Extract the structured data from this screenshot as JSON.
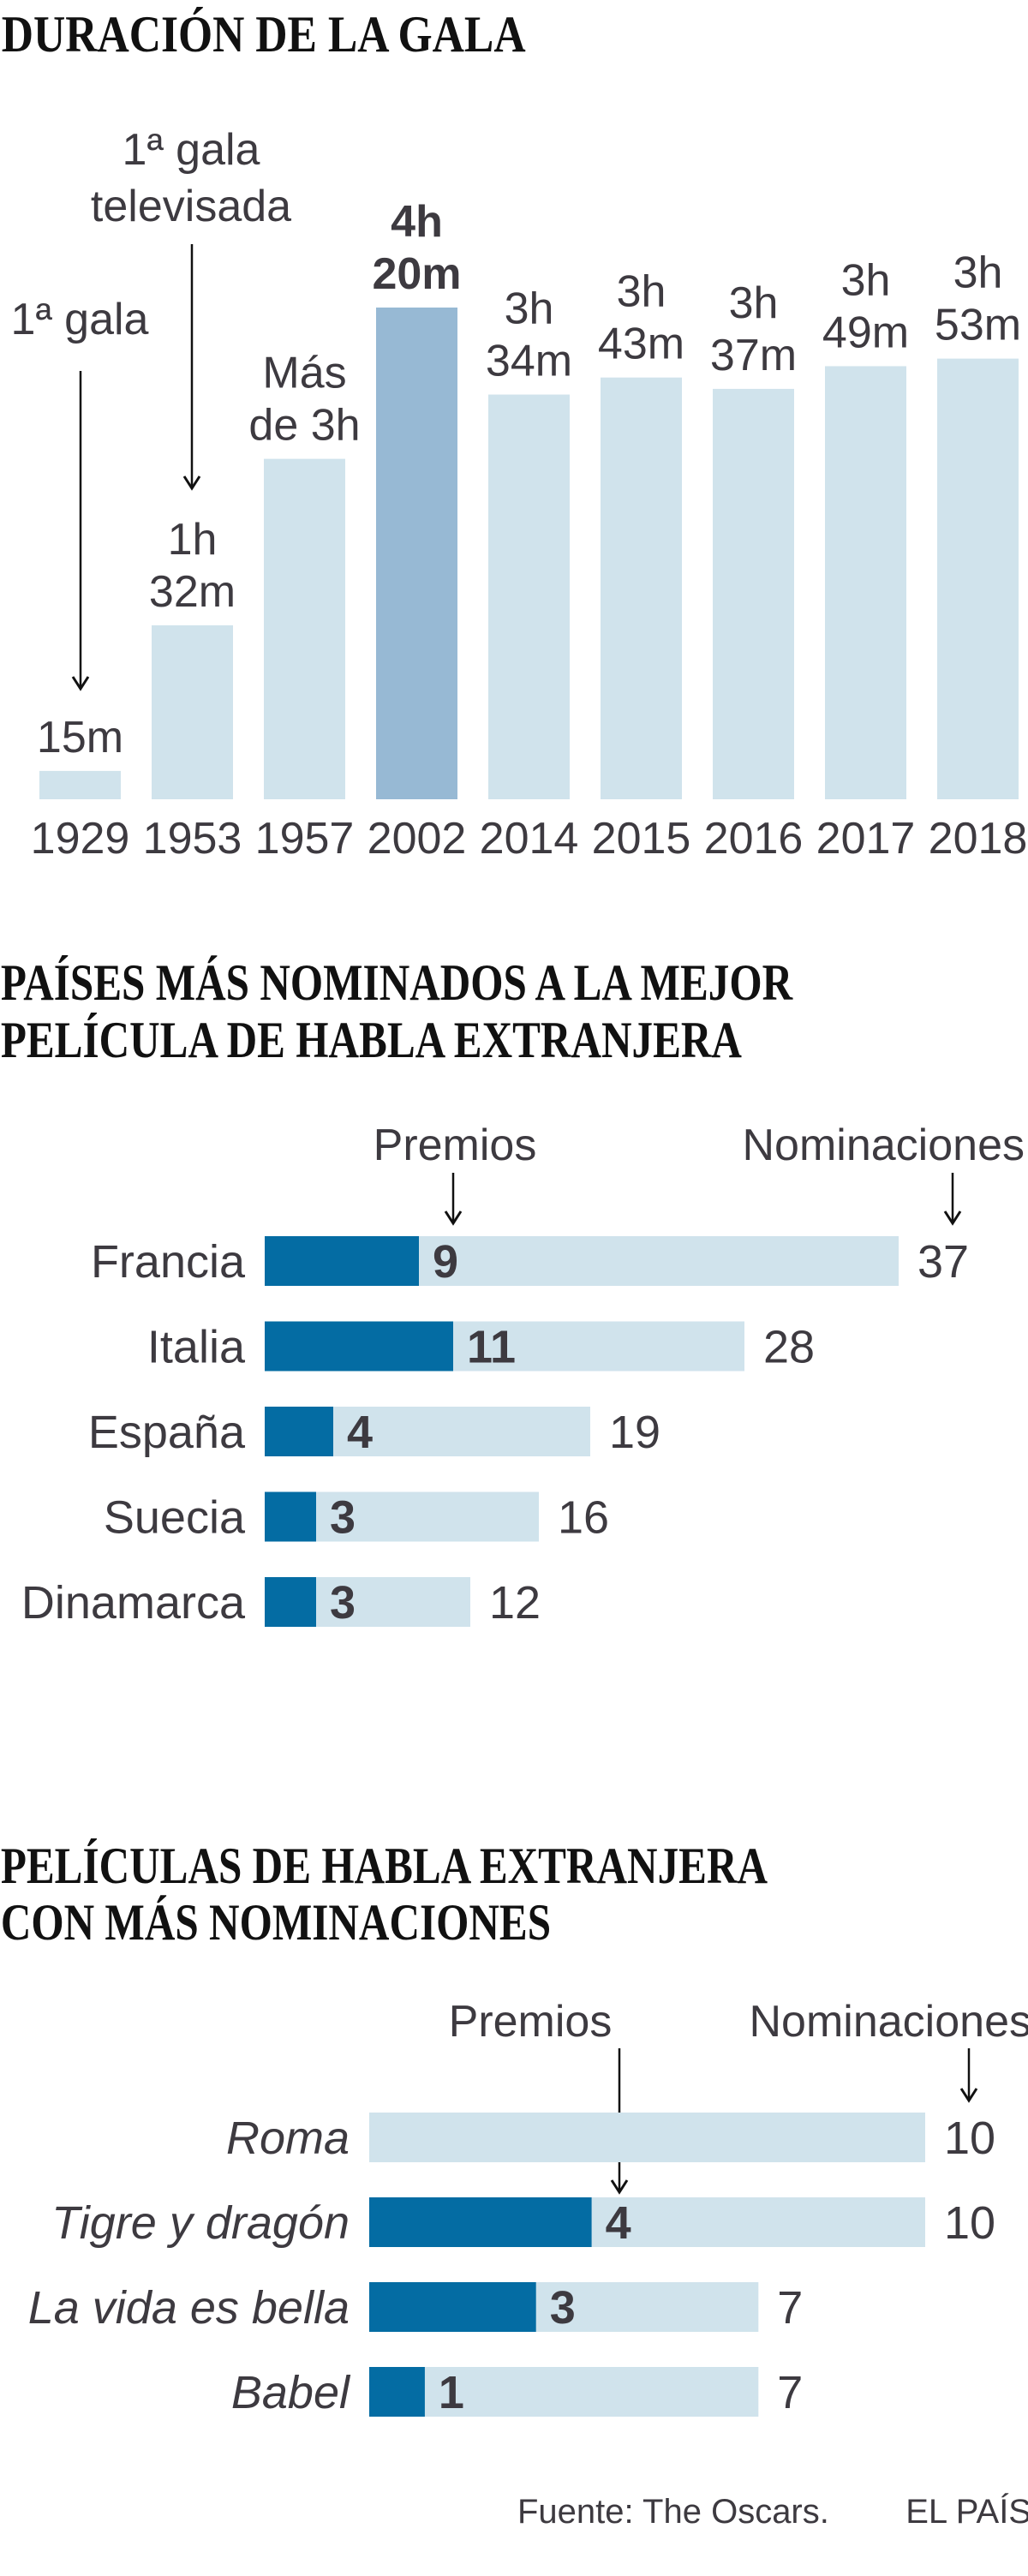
{
  "colors": {
    "light": "#d0e3ec",
    "highlight": "#97b9d4",
    "dark": "#046ca3",
    "text": "#3d3a40"
  },
  "chart_data": [
    {
      "type": "bar",
      "title": "DURACIÓN DE LA GALA",
      "unit": "minutes",
      "categories": [
        "1929",
        "1953",
        "1957",
        "2002",
        "2014",
        "2015",
        "2016",
        "2017",
        "2018"
      ],
      "values": [
        15,
        92,
        180,
        260,
        214,
        223,
        217,
        229,
        233
      ],
      "labels": [
        [
          "15m"
        ],
        [
          "1h",
          "32m"
        ],
        [
          "Más",
          "de 3h"
        ],
        [
          "4h",
          "20m"
        ],
        [
          "3h",
          "34m"
        ],
        [
          "3h",
          "43m"
        ],
        [
          "3h",
          "37m"
        ],
        [
          "3h",
          "49m"
        ],
        [
          "3h",
          "53m"
        ]
      ],
      "highlight_index": 3,
      "annotations": [
        {
          "category": "1929",
          "lines": [
            "1ª gala"
          ]
        },
        {
          "category": "1953",
          "lines": [
            "1ª gala",
            "televisada"
          ]
        }
      ]
    },
    {
      "type": "bar",
      "orientation": "horizontal",
      "title": [
        "PAÍSES MÁS NOMINADOS A LA MEJOR",
        "PELÍCULA DE HABLA EXTRANJERA"
      ],
      "legend": {
        "premios": "Premios",
        "nominaciones": "Nominaciones"
      },
      "categories": [
        "Francia",
        "Italia",
        "España",
        "Suecia",
        "Dinamarca"
      ],
      "series": [
        {
          "name": "Premios",
          "values": [
            9,
            11,
            4,
            3,
            3
          ]
        },
        {
          "name": "Nominaciones",
          "values": [
            37,
            28,
            19,
            16,
            12
          ]
        }
      ]
    },
    {
      "type": "bar",
      "orientation": "horizontal",
      "title": [
        "PELÍCULAS DE HABLA EXTRANJERA",
        "CON MÁS NOMINACIONES"
      ],
      "legend": {
        "premios": "Premios",
        "nominaciones": "Nominaciones"
      },
      "categories": [
        "Roma",
        "Tigre y dragón",
        "La vida es bella",
        "Babel"
      ],
      "series": [
        {
          "name": "Premios",
          "values": [
            0,
            4,
            3,
            1
          ]
        },
        {
          "name": "Nominaciones",
          "values": [
            10,
            10,
            7,
            7
          ]
        }
      ]
    }
  ],
  "footer": {
    "source": "Fuente: The Oscars.",
    "brand": "EL PAÍS"
  }
}
